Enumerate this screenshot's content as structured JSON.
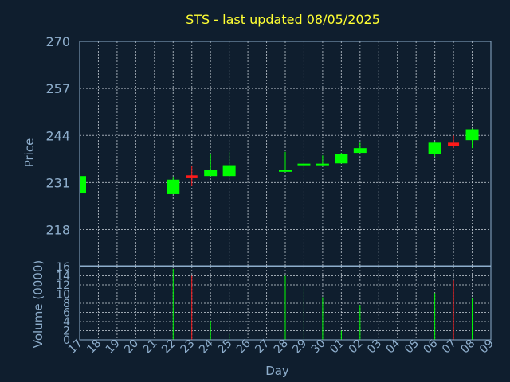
{
  "chart_data": [
    {
      "type": "candlestick",
      "title": "STS - last updated 08/05/2025",
      "ylabel": "Price",
      "xlabel": "Day",
      "ylim": [
        208,
        270
      ],
      "yticks": [
        270,
        257,
        244,
        231,
        218
      ],
      "grid": true,
      "up_color": "#00ff00",
      "down_color": "#ff1a1a",
      "categories": [
        "17",
        "18",
        "19",
        "20",
        "21",
        "22",
        "23",
        "24",
        "25",
        "26",
        "27",
        "28",
        "29",
        "30",
        "01",
        "02",
        "03",
        "04",
        "05",
        "06",
        "07",
        "08",
        "09"
      ],
      "candles": [
        {
          "day": "17",
          "open": 228.0,
          "high": 233.0,
          "low": 228.0,
          "close": 232.8
        },
        {
          "day": "22",
          "open": 227.8,
          "high": 232.5,
          "low": 227.8,
          "close": 231.8
        },
        {
          "day": "23",
          "open": 233.0,
          "high": 235.5,
          "low": 230.0,
          "close": 232.2
        },
        {
          "day": "24",
          "open": 232.8,
          "high": 238.8,
          "low": 232.8,
          "close": 234.5
        },
        {
          "day": "25",
          "open": 232.8,
          "high": 239.5,
          "low": 232.8,
          "close": 235.8
        },
        {
          "day": "28",
          "open": 234.0,
          "high": 239.5,
          "low": 234.0,
          "close": 234.4
        },
        {
          "day": "29",
          "open": 235.8,
          "high": 236.3,
          "low": 234.2,
          "close": 236.2
        },
        {
          "day": "30",
          "open": 235.9,
          "high": 238.5,
          "low": 235.5,
          "close": 236.1
        },
        {
          "day": "01",
          "open": 236.3,
          "high": 239.2,
          "low": 236.3,
          "close": 239.0
        },
        {
          "day": "02",
          "open": 239.2,
          "high": 242.0,
          "low": 239.2,
          "close": 240.5
        },
        {
          "day": "06",
          "open": 239.0,
          "high": 242.2,
          "low": 238.2,
          "close": 242.0
        },
        {
          "day": "07",
          "open": 242.0,
          "high": 244.0,
          "low": 240.5,
          "close": 241.0
        },
        {
          "day": "08",
          "open": 242.7,
          "high": 245.9,
          "low": 240.5,
          "close": 245.7
        }
      ]
    },
    {
      "type": "bar",
      "ylabel": "Volume (0000)",
      "xlabel": "Day",
      "ylim": [
        0,
        16
      ],
      "yticks": [
        0,
        2,
        4,
        6,
        8,
        10,
        12,
        14,
        16
      ],
      "categories": [
        "17",
        "18",
        "19",
        "20",
        "21",
        "22",
        "23",
        "24",
        "25",
        "26",
        "27",
        "28",
        "29",
        "30",
        "01",
        "02",
        "03",
        "04",
        "05",
        "06",
        "07",
        "08",
        "09"
      ],
      "bars": [
        {
          "day": "22",
          "value": 15.5,
          "color": "#00ff00"
        },
        {
          "day": "23",
          "value": 14.0,
          "color": "#ff1a1a"
        },
        {
          "day": "24",
          "value": 4.2,
          "color": "#00ff00"
        },
        {
          "day": "25",
          "value": 1.2,
          "color": "#00ff00"
        },
        {
          "day": "28",
          "value": 14.0,
          "color": "#00ff00"
        },
        {
          "day": "29",
          "value": 11.8,
          "color": "#00ff00"
        },
        {
          "day": "30",
          "value": 9.3,
          "color": "#00ff00"
        },
        {
          "day": "01",
          "value": 2.0,
          "color": "#00ff00"
        },
        {
          "day": "02",
          "value": 7.6,
          "color": "#00ff00"
        },
        {
          "day": "06",
          "value": 10.2,
          "color": "#00ff00"
        },
        {
          "day": "07",
          "value": 13.0,
          "color": "#ff1a1a"
        },
        {
          "day": "08",
          "value": 9.0,
          "color": "#00ff00"
        }
      ]
    }
  ]
}
